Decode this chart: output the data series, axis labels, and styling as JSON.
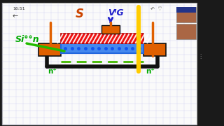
{
  "status_bar": "16:51",
  "label_Si": "Si°°n",
  "label_S": "S",
  "label_VIG": "VᴵG",
  "label_n1": "n⁺",
  "label_n2": "n⁺",
  "colors": {
    "orange": "#E06000",
    "red": "#EE1111",
    "blue_channel": "#3399FF",
    "blue_dots": "#1155EE",
    "green_text": "#00AA00",
    "green_line": "#22BB00",
    "green_dashed": "#44BB00",
    "yellow": "#FFCC00",
    "black": "#111111",
    "dark_orange": "#CC4400",
    "white": "#FFFFFF",
    "phone_bg": "#FAFAFA",
    "phone_border": "#AAAAAA",
    "dark_bg": "#1A1A1A",
    "grid_line": "#AAAAEE",
    "ui_gray": "#CCCCCC"
  },
  "figsize": [
    3.2,
    1.8
  ],
  "dpi": 100
}
